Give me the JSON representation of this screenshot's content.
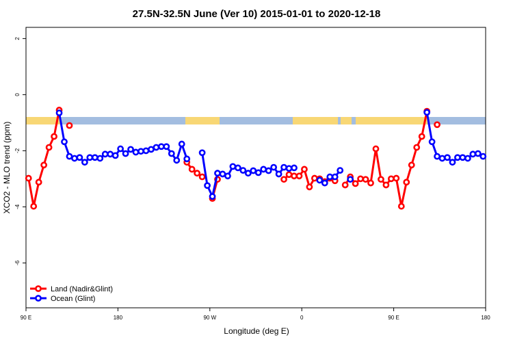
{
  "chart_data": {
    "type": "line",
    "title": "27.5N-32.5N June (Ver 10)   2015-01-01 to 2020-12-18",
    "x_label": "Longitude (deg E)",
    "y_label": "XCO2 - MLO trend (ppm)",
    "x": [
      92.5,
      97.5,
      102.5,
      107.5,
      112.5,
      117.5,
      122.5,
      127.5,
      132.5,
      137.5,
      142.5,
      147.5,
      152.5,
      157.5,
      162.5,
      167.5,
      172.5,
      177.5,
      182.5,
      187.5,
      192.5,
      197.5,
      202.5,
      207.5,
      212.5,
      217.5,
      222.5,
      227.5,
      232.5,
      237.5,
      242.5,
      247.5,
      252.5,
      257.5,
      262.5,
      267.5,
      272.5,
      277.5,
      282.5,
      287.5,
      292.5,
      297.5,
      302.5,
      307.5,
      312.5,
      317.5,
      322.5,
      327.5,
      332.5,
      337.5,
      342.5,
      347.5,
      352.5,
      357.5,
      362.5,
      367.5,
      372.5,
      377.5,
      382.5,
      387.5,
      392.5,
      397.5,
      402.5,
      407.5,
      412.5,
      417.5,
      422.5,
      427.5,
      432.5,
      437.5,
      442.5,
      447.5,
      452.5,
      457.5,
      462.5,
      467.5,
      472.5,
      477.5,
      482.5,
      487.5,
      492.5,
      497.5,
      502.5,
      507.5,
      512.5,
      517.5,
      522.5,
      527.5,
      532.5,
      537.5
    ],
    "series": [
      {
        "name": "Land (Nadir&Glint)",
        "color": "#ff0000",
        "values": [
          -2.98,
          -3.98,
          -3.12,
          -2.51,
          -1.88,
          -1.49,
          -0.55,
          null,
          -1.1,
          null,
          null,
          null,
          null,
          null,
          null,
          null,
          null,
          null,
          null,
          null,
          null,
          null,
          null,
          null,
          null,
          null,
          null,
          null,
          null,
          null,
          null,
          -2.41,
          -2.66,
          -2.8,
          -2.93,
          null,
          -3.7,
          -3.02,
          null,
          null,
          null,
          null,
          null,
          null,
          null,
          null,
          null,
          null,
          null,
          null,
          -3.02,
          -2.85,
          -2.9,
          -2.9,
          -2.66,
          -3.29,
          -2.98,
          -3.0,
          -3.1,
          -2.98,
          -3.07,
          null,
          -3.22,
          -2.93,
          -3.17,
          -3.0,
          -3.02,
          -3.15,
          -1.93,
          -3.02,
          -3.22,
          -3.0,
          -2.98,
          -3.98,
          -3.12,
          -2.51,
          -1.88,
          -1.49,
          -0.59,
          null,
          -1.07,
          null,
          null,
          null,
          null,
          null,
          null,
          null,
          null,
          null
        ]
      },
      {
        "name": "Ocean (Glint)",
        "color": "#0000ff",
        "values": [
          null,
          null,
          null,
          null,
          null,
          null,
          -0.65,
          -1.68,
          -2.2,
          -2.27,
          -2.24,
          -2.41,
          -2.24,
          -2.24,
          -2.27,
          -2.12,
          -2.12,
          -2.17,
          -1.93,
          -2.1,
          -1.95,
          -2.05,
          -2.02,
          -2.0,
          -1.95,
          -1.88,
          -1.85,
          -1.85,
          -2.1,
          -2.34,
          -1.76,
          -2.29,
          null,
          null,
          -2.07,
          -3.24,
          -3.63,
          -2.8,
          -2.83,
          -2.9,
          -2.56,
          -2.61,
          -2.7,
          -2.8,
          -2.71,
          -2.78,
          -2.66,
          -2.71,
          -2.59,
          -2.83,
          -2.59,
          -2.63,
          -2.61,
          null,
          null,
          null,
          null,
          -3.05,
          -3.15,
          -2.93,
          -2.93,
          -2.7,
          null,
          -3.02,
          null,
          null,
          null,
          null,
          null,
          null,
          null,
          null,
          null,
          null,
          null,
          null,
          null,
          null,
          -0.63,
          -1.68,
          -2.2,
          -2.27,
          -2.24,
          -2.41,
          -2.24,
          -2.24,
          -2.27,
          -2.12,
          -2.1,
          -2.2
        ]
      }
    ],
    "xlim": [
      90,
      540
    ],
    "xticks": [
      {
        "value": 90,
        "label": "90 E"
      },
      180,
      {
        "value": 270,
        "label": "90 W"
      },
      {
        "value": 360,
        "label": "0"
      },
      {
        "value": 450,
        "label": "90 E"
      },
      {
        "value": 540,
        "label": "180"
      }
    ],
    "ylim": [
      -7.6,
      2.4
    ],
    "yticks": [
      -6,
      -4,
      -2,
      0,
      2
    ],
    "legend": "bottom-left"
  }
}
